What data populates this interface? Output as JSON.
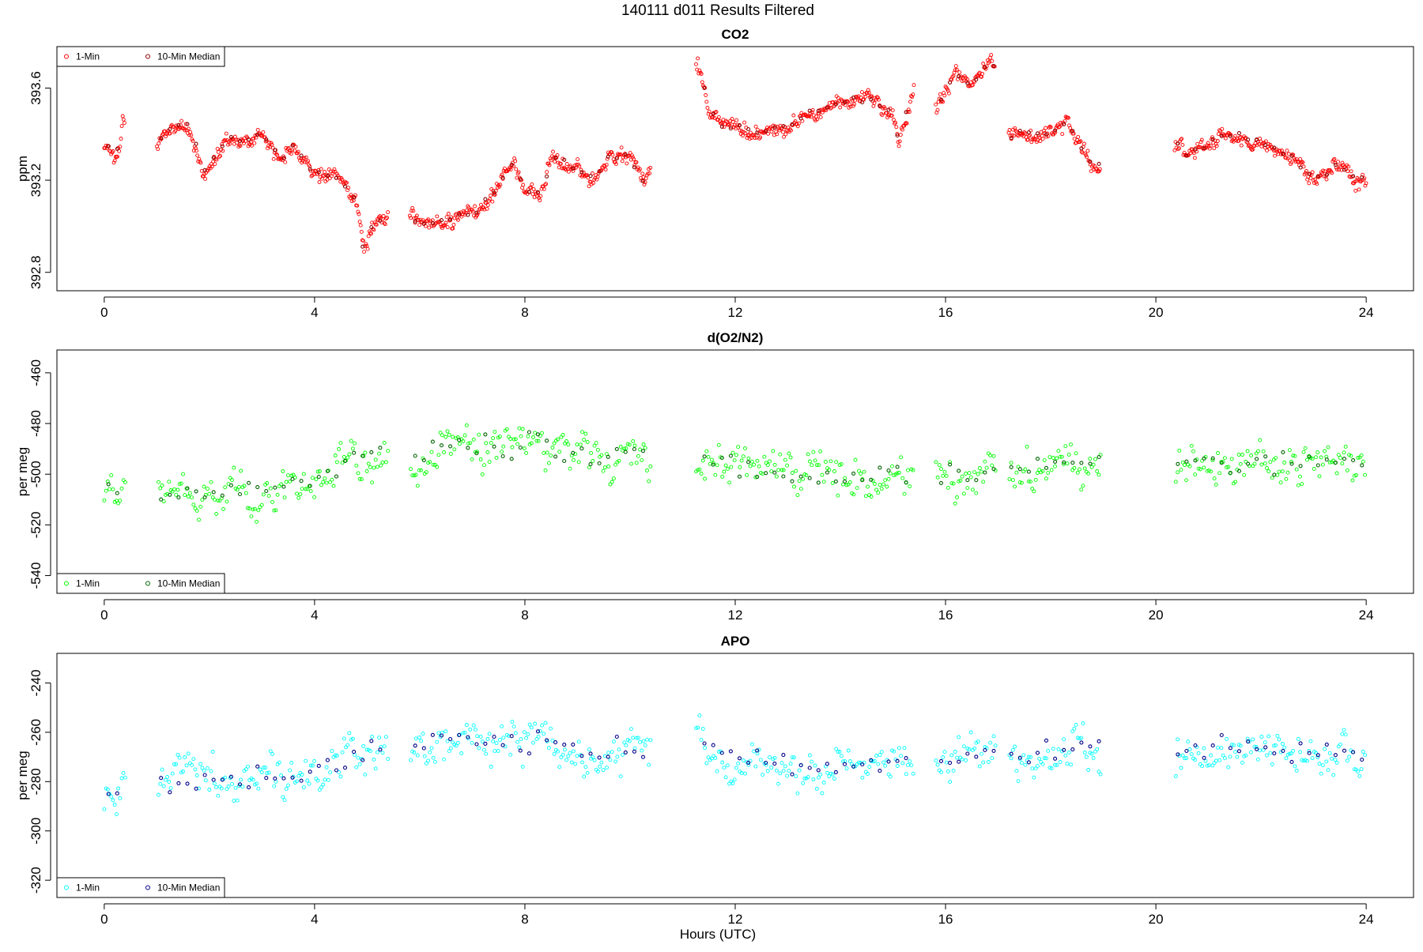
{
  "figure": {
    "title": "140111   d011   Results Filtered",
    "xlabel": "Hours (UTC)"
  },
  "colors": {
    "co2": "#ff0000",
    "co2_median": "#8b0000",
    "o2n2": "#00ff00",
    "o2n2_median": "#006400",
    "apo": "#00ffff",
    "apo_median": "#00008b"
  },
  "chart_data": [
    {
      "type": "scatter",
      "title": "CO2",
      "ylabel": "ppm",
      "xlim": [
        -0.9,
        24.9
      ],
      "ylim": [
        392.72,
        393.78
      ],
      "xticks": [
        0,
        4,
        8,
        12,
        16,
        20,
        24
      ],
      "yticks": [
        392.8,
        393.2,
        393.6
      ],
      "ytick_labels": [
        "392.8",
        "393.2",
        "393.6"
      ],
      "legend": {
        "placement": "top-left",
        "entries": [
          "1-Min",
          "10-Min Median"
        ]
      },
      "gaps": [
        [
          0.4,
          1.0
        ],
        [
          5.4,
          5.8
        ],
        [
          10.4,
          11.25
        ],
        [
          15.4,
          15.8
        ],
        [
          16.95,
          17.2
        ],
        [
          18.95,
          20.35
        ]
      ],
      "series": [
        {
          "name": "1-Min",
          "step": 0.0167,
          "noise": 0.025,
          "trend": [
            [
              0,
              393.34
            ],
            [
              0.3,
              393.33
            ],
            [
              0.35,
              393.45
            ],
            [
              1.0,
              393.36
            ],
            [
              1.4,
              393.45
            ],
            [
              1.6,
              393.44
            ],
            [
              1.9,
              393.24
            ],
            [
              2.3,
              393.38
            ],
            [
              2.8,
              393.38
            ],
            [
              3.0,
              393.4
            ],
            [
              3.4,
              393.28
            ],
            [
              3.6,
              393.35
            ],
            [
              4.0,
              393.24
            ],
            [
              4.5,
              393.2
            ],
            [
              4.8,
              393.1
            ],
            [
              4.95,
              392.88
            ],
            [
              5.1,
              393.0
            ],
            [
              5.4,
              393.05
            ],
            [
              5.8,
              393.05
            ],
            [
              6.0,
              393.0
            ],
            [
              7.0,
              393.05
            ],
            [
              7.5,
              393.16
            ],
            [
              7.8,
              393.3
            ],
            [
              8.0,
              393.14
            ],
            [
              8.3,
              393.14
            ],
            [
              8.5,
              393.3
            ],
            [
              9.0,
              393.24
            ],
            [
              9.3,
              393.2
            ],
            [
              9.6,
              393.3
            ],
            [
              10.0,
              393.3
            ],
            [
              10.3,
              393.18
            ],
            [
              11.3,
              393.7
            ],
            [
              11.5,
              393.5
            ],
            [
              11.8,
              393.44
            ],
            [
              12.5,
              393.4
            ],
            [
              13.0,
              393.44
            ],
            [
              13.5,
              393.5
            ],
            [
              14.0,
              393.54
            ],
            [
              14.5,
              393.56
            ],
            [
              15.0,
              393.5
            ],
            [
              15.1,
              393.38
            ],
            [
              15.4,
              393.6
            ],
            [
              15.8,
              393.52
            ],
            [
              16.2,
              393.66
            ],
            [
              16.5,
              393.62
            ],
            [
              16.9,
              393.72
            ],
            [
              17.2,
              393.4
            ],
            [
              17.5,
              393.4
            ],
            [
              18.0,
              393.4
            ],
            [
              18.3,
              393.46
            ],
            [
              18.6,
              393.34
            ],
            [
              18.9,
              393.26
            ],
            [
              20.35,
              393.38
            ],
            [
              20.6,
              393.3
            ],
            [
              21.0,
              393.36
            ],
            [
              21.5,
              393.4
            ],
            [
              22.0,
              393.36
            ],
            [
              22.4,
              393.32
            ],
            [
              22.8,
              393.26
            ],
            [
              23.0,
              393.2
            ],
            [
              23.4,
              393.26
            ],
            [
              23.6,
              393.24
            ],
            [
              24.0,
              393.18
            ]
          ]
        },
        {
          "name": "10-Min Median",
          "step": 0.1667
        }
      ]
    },
    {
      "type": "scatter",
      "title": "d(O2/N2)",
      "ylabel": "per meg",
      "xlim": [
        -0.9,
        24.9
      ],
      "ylim": [
        -547,
        -451
      ],
      "xticks": [
        0,
        4,
        8,
        12,
        16,
        20,
        24
      ],
      "yticks": [
        -540,
        -520,
        -500,
        -480,
        -460
      ],
      "ytick_labels": [
        "-540",
        "-520",
        "-500",
        "-480",
        "-460"
      ],
      "legend": {
        "placement": "bottom-left",
        "entries": [
          "1-Min",
          "10-Min Median"
        ]
      },
      "gaps": [
        [
          0.4,
          1.0
        ],
        [
          5.4,
          5.8
        ],
        [
          10.4,
          11.25
        ],
        [
          15.4,
          15.8
        ],
        [
          16.95,
          17.2
        ],
        [
          18.95,
          20.35
        ]
      ],
      "series": [
        {
          "name": "1-Min",
          "step": 0.0333,
          "noise": 6.5,
          "trend": [
            [
              0,
              -510
            ],
            [
              1,
              -508
            ],
            [
              2,
              -506
            ],
            [
              3,
              -505
            ],
            [
              4,
              -503
            ],
            [
              4.8,
              -493
            ],
            [
              5.4,
              -494
            ],
            [
              5.8,
              -495
            ],
            [
              6.5,
              -489
            ],
            [
              7.5,
              -491
            ],
            [
              8.3,
              -488
            ],
            [
              9,
              -494
            ],
            [
              10.4,
              -492
            ],
            [
              11.25,
              -493
            ],
            [
              12,
              -498
            ],
            [
              13,
              -501
            ],
            [
              14,
              -502
            ],
            [
              15,
              -500
            ],
            [
              16,
              -500
            ],
            [
              17.2,
              -499
            ],
            [
              18,
              -497
            ],
            [
              19,
              -495
            ],
            [
              20.35,
              -499
            ],
            [
              21,
              -496
            ],
            [
              22,
              -496
            ],
            [
              23,
              -496
            ],
            [
              24,
              -495
            ]
          ]
        },
        {
          "name": "10-Min Median",
          "step": 0.1667
        }
      ]
    },
    {
      "type": "scatter",
      "title": "APO",
      "ylabel": "per meg",
      "xlim": [
        -0.9,
        24.9
      ],
      "ylim": [
        -327,
        -228
      ],
      "xticks": [
        0,
        4,
        8,
        12,
        16,
        20,
        24
      ],
      "yticks": [
        -320,
        -300,
        -280,
        -260,
        -240
      ],
      "ytick_labels": [
        "-320",
        "-300",
        "-280",
        "-260",
        "-240"
      ],
      "legend": {
        "placement": "bottom-left",
        "entries": [
          "1-Min",
          "10-Min Median"
        ]
      },
      "gaps": [
        [
          0.4,
          1.0
        ],
        [
          5.4,
          5.8
        ],
        [
          10.4,
          11.25
        ],
        [
          15.4,
          15.8
        ],
        [
          16.95,
          17.2
        ],
        [
          18.95,
          20.35
        ]
      ],
      "series": [
        {
          "name": "1-Min",
          "step": 0.0333,
          "noise": 6.5,
          "trend": [
            [
              0,
              -283
            ],
            [
              1,
              -281
            ],
            [
              2,
              -279
            ],
            [
              3,
              -279
            ],
            [
              4,
              -276
            ],
            [
              4.8,
              -266
            ],
            [
              5.4,
              -267
            ],
            [
              5.8,
              -268
            ],
            [
              6.5,
              -262
            ],
            [
              7.5,
              -264
            ],
            [
              8.3,
              -262
            ],
            [
              9,
              -268
            ],
            [
              10.4,
              -267
            ],
            [
              11.25,
              -262
            ],
            [
              12,
              -270
            ],
            [
              13,
              -272
            ],
            [
              14,
              -274
            ],
            [
              15,
              -272
            ],
            [
              16,
              -271
            ],
            [
              17.2,
              -268
            ],
            [
              18,
              -268
            ],
            [
              19,
              -266
            ],
            [
              20.35,
              -269
            ],
            [
              21,
              -265
            ],
            [
              22,
              -268
            ],
            [
              23,
              -268
            ],
            [
              24,
              -268
            ]
          ]
        },
        {
          "name": "10-Min Median",
          "step": 0.1667
        }
      ]
    }
  ]
}
